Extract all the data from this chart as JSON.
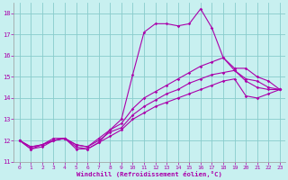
{
  "xlabel": "Windchill (Refroidissement éolien,°C)",
  "bg_color": "#c8f0f0",
  "line_color": "#aa00aa",
  "grid_color": "#88cccc",
  "text_color": "#aa00aa",
  "xlim": [
    -0.5,
    23.5
  ],
  "ylim": [
    11,
    18.5
  ],
  "xticks": [
    0,
    1,
    2,
    3,
    4,
    5,
    6,
    7,
    8,
    9,
    10,
    11,
    12,
    13,
    14,
    15,
    16,
    17,
    18,
    19,
    20,
    21,
    22,
    23
  ],
  "yticks": [
    11,
    12,
    13,
    14,
    15,
    16,
    17,
    18
  ],
  "series": [
    {
      "x": [
        0,
        1,
        2,
        3,
        4,
        5,
        6,
        7,
        8,
        9,
        10,
        11,
        12,
        13,
        14,
        15,
        16,
        17,
        18,
        19,
        20,
        21,
        22,
        23
      ],
      "y": [
        12.0,
        11.6,
        11.8,
        12.1,
        12.1,
        11.6,
        11.6,
        11.9,
        12.5,
        13.0,
        15.1,
        17.1,
        17.5,
        17.5,
        17.4,
        17.5,
        18.2,
        17.3,
        15.9,
        15.3,
        14.9,
        14.8,
        14.5,
        14.4
      ]
    },
    {
      "x": [
        0,
        1,
        2,
        3,
        4,
        5,
        6,
        7,
        8,
        9,
        10,
        11,
        12,
        13,
        14,
        15,
        16,
        17,
        18,
        19,
        20,
        21,
        22,
        23
      ],
      "y": [
        12.0,
        11.7,
        11.8,
        12.0,
        12.1,
        11.8,
        11.7,
        12.1,
        12.5,
        12.8,
        13.5,
        14.0,
        14.3,
        14.6,
        14.9,
        15.2,
        15.5,
        15.7,
        15.9,
        15.4,
        15.4,
        15.0,
        14.8,
        14.4
      ]
    },
    {
      "x": [
        0,
        1,
        2,
        3,
        4,
        5,
        6,
        7,
        8,
        9,
        10,
        11,
        12,
        13,
        14,
        15,
        16,
        17,
        18,
        19,
        20,
        21,
        22,
        23
      ],
      "y": [
        12.0,
        11.7,
        11.8,
        12.0,
        12.1,
        11.8,
        11.7,
        12.0,
        12.4,
        12.6,
        13.2,
        13.6,
        13.9,
        14.2,
        14.4,
        14.7,
        14.9,
        15.1,
        15.2,
        15.3,
        14.8,
        14.5,
        14.4,
        14.4
      ]
    },
    {
      "x": [
        0,
        1,
        2,
        3,
        4,
        5,
        6,
        7,
        8,
        9,
        10,
        11,
        12,
        13,
        14,
        15,
        16,
        17,
        18,
        19,
        20,
        21,
        22,
        23
      ],
      "y": [
        12.0,
        11.6,
        11.7,
        12.0,
        12.1,
        11.7,
        11.6,
        11.9,
        12.2,
        12.5,
        13.0,
        13.3,
        13.6,
        13.8,
        14.0,
        14.2,
        14.4,
        14.6,
        14.8,
        14.9,
        14.1,
        14.0,
        14.2,
        14.4
      ]
    }
  ]
}
